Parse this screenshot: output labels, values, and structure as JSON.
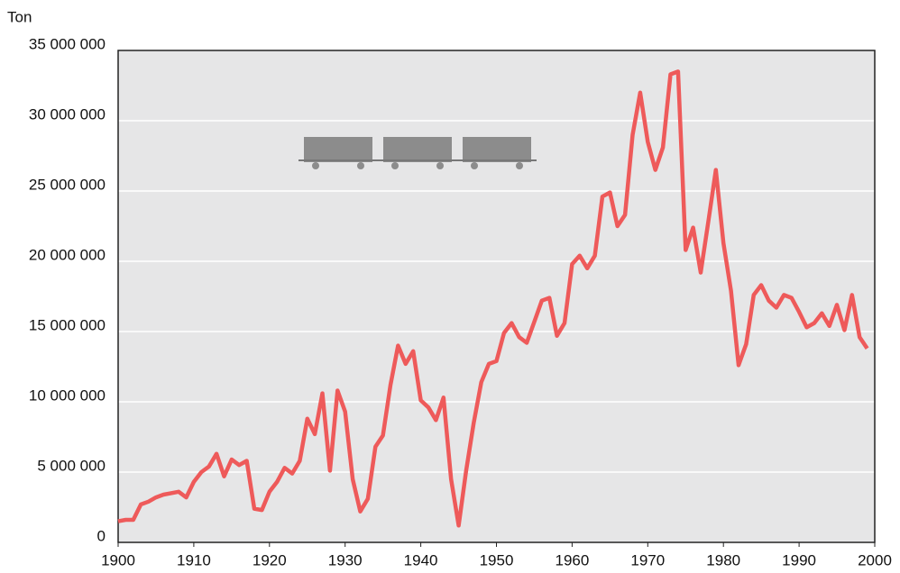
{
  "chart_data": {
    "type": "line",
    "y_label": "Ton",
    "x": [
      1900,
      1901,
      1902,
      1903,
      1904,
      1905,
      1906,
      1907,
      1908,
      1909,
      1910,
      1911,
      1912,
      1913,
      1914,
      1915,
      1916,
      1917,
      1918,
      1919,
      1920,
      1921,
      1922,
      1923,
      1924,
      1925,
      1926,
      1927,
      1928,
      1929,
      1930,
      1931,
      1932,
      1933,
      1934,
      1935,
      1936,
      1937,
      1938,
      1939,
      1940,
      1941,
      1942,
      1943,
      1944,
      1945,
      1946,
      1947,
      1948,
      1949,
      1950,
      1951,
      1952,
      1953,
      1954,
      1955,
      1956,
      1957,
      1958,
      1959,
      1960,
      1961,
      1962,
      1963,
      1964,
      1965,
      1966,
      1967,
      1968,
      1969,
      1970,
      1971,
      1972,
      1973,
      1974,
      1975,
      1976,
      1977,
      1978,
      1979,
      1980,
      1981,
      1982,
      1983,
      1984,
      1985,
      1986,
      1987,
      1988,
      1989,
      1990,
      1991,
      1992,
      1993,
      1994,
      1995,
      1996,
      1997,
      1998,
      1999
    ],
    "values": [
      1500000,
      1600000,
      1600000,
      2700000,
      2900000,
      3200000,
      3400000,
      3500000,
      3600000,
      3200000,
      4300000,
      5000000,
      5400000,
      6300000,
      4700000,
      5900000,
      5500000,
      5800000,
      2400000,
      2300000,
      3600000,
      4300000,
      5300000,
      4900000,
      5800000,
      8800000,
      7700000,
      10600000,
      5100000,
      10800000,
      9300000,
      4500000,
      2200000,
      3100000,
      6800000,
      7600000,
      11200000,
      14000000,
      12700000,
      13600000,
      10100000,
      9600000,
      8700000,
      10300000,
      4500000,
      1200000,
      5100000,
      8500000,
      11400000,
      12700000,
      12900000,
      14900000,
      15600000,
      14600000,
      14200000,
      15700000,
      17200000,
      17400000,
      14700000,
      15600000,
      19800000,
      20400000,
      19500000,
      20400000,
      24600000,
      24900000,
      22500000,
      23300000,
      29000000,
      32000000,
      28500000,
      26500000,
      28100000,
      33300000,
      33500000,
      20800000,
      22400000,
      19200000,
      22800000,
      26500000,
      21300000,
      17900000,
      12600000,
      14100000,
      17600000,
      18300000,
      17200000,
      16700000,
      17600000,
      17400000,
      16400000,
      15300000,
      15600000,
      16300000,
      15400000,
      16900000,
      15100000,
      17600000,
      14600000,
      13800000
    ],
    "color": "#ee5a5a",
    "xlim": [
      1900,
      2000
    ],
    "xticks": [
      1900,
      1910,
      1920,
      1930,
      1940,
      1950,
      1960,
      1970,
      1980,
      1990,
      2000
    ],
    "ylim": [
      0,
      35000000
    ],
    "yticks": [
      {
        "value": 0,
        "label": "0"
      },
      {
        "value": 5000000,
        "label": "5 000 000"
      },
      {
        "value": 10000000,
        "label": "10 000 000"
      },
      {
        "value": 15000000,
        "label": "15 000 000"
      },
      {
        "value": 20000000,
        "label": "20 000 000"
      },
      {
        "value": 25000000,
        "label": "25 000 000"
      },
      {
        "value": 30000000,
        "label": "30 000 000"
      },
      {
        "value": 35000000,
        "label": "35 000 000"
      }
    ],
    "grid": true
  }
}
